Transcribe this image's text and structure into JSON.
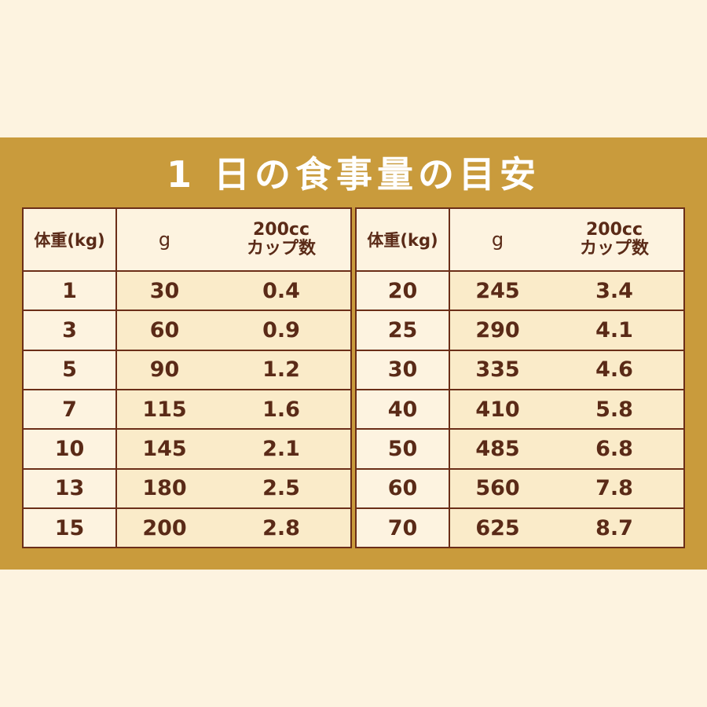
{
  "title": "1 日の食事量の目安",
  "headers": {
    "weight": "体重(kg)",
    "grams": "g",
    "cups_line1": "200cc",
    "cups_line2": "カップ数"
  },
  "left_rows": [
    {
      "weight": "1",
      "grams": "30",
      "cups": "0.4"
    },
    {
      "weight": "3",
      "grams": "60",
      "cups": "0.9"
    },
    {
      "weight": "5",
      "grams": "90",
      "cups": "1.2"
    },
    {
      "weight": "7",
      "grams": "115",
      "cups": "1.6"
    },
    {
      "weight": "10",
      "grams": "145",
      "cups": "2.1"
    },
    {
      "weight": "13",
      "grams": "180",
      "cups": "2.5"
    },
    {
      "weight": "15",
      "grams": "200",
      "cups": "2.8"
    }
  ],
  "right_rows": [
    {
      "weight": "20",
      "grams": "245",
      "cups": "3.4"
    },
    {
      "weight": "25",
      "grams": "290",
      "cups": "4.1"
    },
    {
      "weight": "30",
      "grams": "335",
      "cups": "4.6"
    },
    {
      "weight": "40",
      "grams": "410",
      "cups": "5.8"
    },
    {
      "weight": "50",
      "grams": "485",
      "cups": "6.8"
    },
    {
      "weight": "60",
      "grams": "560",
      "cups": "7.8"
    },
    {
      "weight": "70",
      "grams": "625",
      "cups": "8.7"
    }
  ],
  "colors": {
    "page_bg": "#fdf3e0",
    "band": "#c99b3c",
    "text": "#5a2a17",
    "border": "#6b2e18",
    "cell_alt": "#faebc9"
  }
}
